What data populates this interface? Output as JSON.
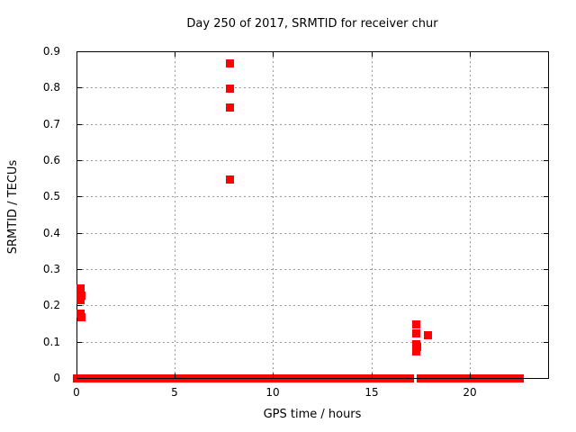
{
  "chart_data": {
    "type": "scatter",
    "title": "Day 250 of 2017, SRMTID for receiver chur",
    "xlabel": "GPS time / hours",
    "ylabel": "SRMTID / TECUs",
    "xlim": [
      0,
      24
    ],
    "ylim": [
      0,
      0.9
    ],
    "xticks": [
      0,
      5,
      10,
      15,
      20
    ],
    "xtick_labels": [
      "0",
      "5",
      "10",
      "15",
      "20"
    ],
    "yticks": [
      0,
      0.1,
      0.2,
      0.3,
      0.4,
      0.5,
      0.6,
      0.7,
      0.8,
      0.9
    ],
    "ytick_labels": [
      "0",
      "0.1",
      "0.2",
      "0.3",
      "0.4",
      "0.5",
      "0.6",
      "0.7",
      "0.8",
      "0.9"
    ],
    "grid": true,
    "legend_position": "none",
    "marker": "plus",
    "marker_color": "#ff0000",
    "series": [
      {
        "name": "SRMTID",
        "points": [
          [
            0.2,
            0.247
          ],
          [
            0.2,
            0.237
          ],
          [
            0.25,
            0.227
          ],
          [
            0.2,
            0.215
          ],
          [
            0.2,
            0.178
          ],
          [
            0.25,
            0.168
          ],
          [
            7.77,
            0.868
          ],
          [
            7.77,
            0.798
          ],
          [
            7.77,
            0.746
          ],
          [
            7.77,
            0.548
          ],
          [
            17.25,
            0.15
          ],
          [
            17.25,
            0.124
          ],
          [
            17.85,
            0.118
          ],
          [
            17.25,
            0.094
          ],
          [
            17.3,
            0.088
          ],
          [
            17.25,
            0.082
          ],
          [
            17.25,
            0.074
          ]
        ]
      }
    ],
    "zero_band": {
      "y": 0,
      "segments": [
        [
          0,
          17.0
        ],
        [
          17.5,
          22.6
        ]
      ],
      "note": "continuous run of samples at SRMTID = 0"
    }
  }
}
